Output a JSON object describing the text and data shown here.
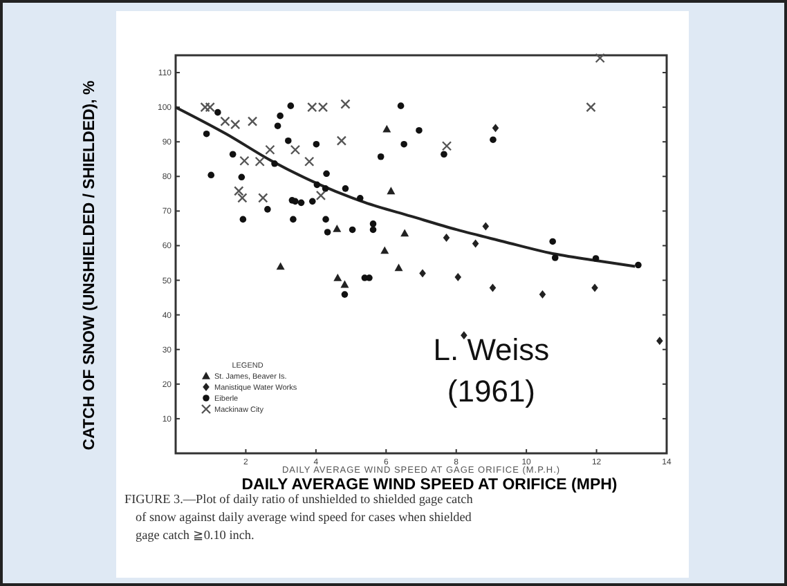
{
  "chart_data": {
    "type": "scatter",
    "xlabel": "DAILY AVERAGE WIND SPEED AT ORIFICE (MPH)",
    "ylabel": "CATCH OF SNOW (UNSHIELDED / SHIELDED), %",
    "legend_title": "LEGEND",
    "legend": "bottom left",
    "grid": false,
    "xlim": [
      0,
      14
    ],
    "xticks": [
      2,
      4,
      6,
      8,
      10,
      12,
      14
    ],
    "ylim": [
      0,
      115
    ],
    "yticks": [
      10,
      20,
      30,
      40,
      50,
      60,
      70,
      80,
      90,
      100,
      110
    ],
    "annotations": [
      "DAILY AVERAGE WIND SPEED AT GAGE ORIFICE (M.P.H.)",
      "L. Weiss\n(1961)",
      "FIGURE 3.—Plot of daily ratio of unshielded to shielded gage catch\nof snow against daily average wind speed for cases when shielded\ngage catch ≧0.10 inch."
    ],
    "series": [
      {
        "name": "St. James, Beaver Is.",
        "color": "#222222",
        "marker": "triangle",
        "x": [
          4.6,
          4.62,
          4.82,
          2.99,
          6.02,
          6.14,
          5.96,
          6.36,
          6.53
        ],
        "values": [
          64.9,
          50.7,
          48.8,
          54.0,
          93.7,
          75.8,
          58.6,
          53.6,
          63.6
        ]
      },
      {
        "name": "Manistique Water Works",
        "color": "#222222",
        "marker": "diamond",
        "x": [
          7.04,
          7.72,
          8.05,
          8.55,
          8.84,
          9.04,
          9.12,
          10.46,
          11.95,
          8.22,
          13.8
        ],
        "values": [
          52.0,
          62.3,
          50.9,
          60.6,
          65.6,
          47.8,
          94.0,
          45.9,
          47.8,
          34.1,
          32.5
        ]
      },
      {
        "name": "Eiberle",
        "color": "#111111",
        "marker": "circle",
        "x": [
          1.2,
          0.88,
          1.01,
          1.63,
          1.88,
          1.92,
          2.62,
          2.82,
          2.91,
          2.98,
          3.28,
          3.21,
          3.32,
          3.41,
          3.58,
          3.35,
          3.9,
          4.01,
          4.03,
          4.27,
          4.3,
          4.28,
          4.33,
          4.84,
          5.04,
          4.82,
          5.26,
          5.63,
          5.63,
          5.39,
          5.52,
          5.85,
          6.42,
          6.51,
          6.94,
          7.65,
          9.05,
          10.75,
          10.82,
          11.98,
          13.19
        ],
        "values": [
          98.5,
          92.3,
          80.4,
          86.4,
          79.8,
          67.6,
          70.5,
          83.7,
          94.6,
          97.5,
          100.4,
          90.3,
          73.1,
          72.8,
          72.4,
          67.6,
          72.8,
          89.3,
          77.6,
          76.5,
          80.8,
          67.6,
          63.9,
          76.5,
          64.6,
          45.9,
          73.7,
          66.3,
          64.6,
          50.7,
          50.7,
          85.7,
          100.4,
          89.3,
          93.3,
          86.4,
          90.6,
          61.2,
          56.5,
          56.3,
          54.4
        ]
      },
      {
        "name": "Mackinaw City",
        "color": "#555555",
        "marker": "cross",
        "x": [
          0.84,
          0.98,
          1.41,
          1.7,
          2.19,
          2.69,
          1.96,
          2.4,
          3.41,
          3.81,
          3.89,
          4.2,
          4.84,
          4.73,
          1.8,
          1.9,
          2.49,
          4.14,
          7.73,
          11.84,
          12.1
        ],
        "values": [
          100,
          100,
          95.9,
          95,
          95.9,
          87.7,
          84.5,
          84.3,
          87.7,
          84.3,
          100,
          100,
          100.9,
          90.3,
          75.8,
          73.8,
          73.8,
          74.5,
          88.8,
          100,
          114.2
        ]
      },
      {
        "type": "line",
        "color": "#222222",
        "marker": "none",
        "line_style": "solid",
        "x": [
          0,
          1.44,
          2.75,
          4.07,
          5.39,
          6.71,
          8.02,
          9.34,
          10.66,
          11.98,
          13.1
        ],
        "values": [
          100,
          92.3,
          84.4,
          77.8,
          72.5,
          68.5,
          64.6,
          61.2,
          57.9,
          55.7,
          54
        ]
      }
    ]
  }
}
